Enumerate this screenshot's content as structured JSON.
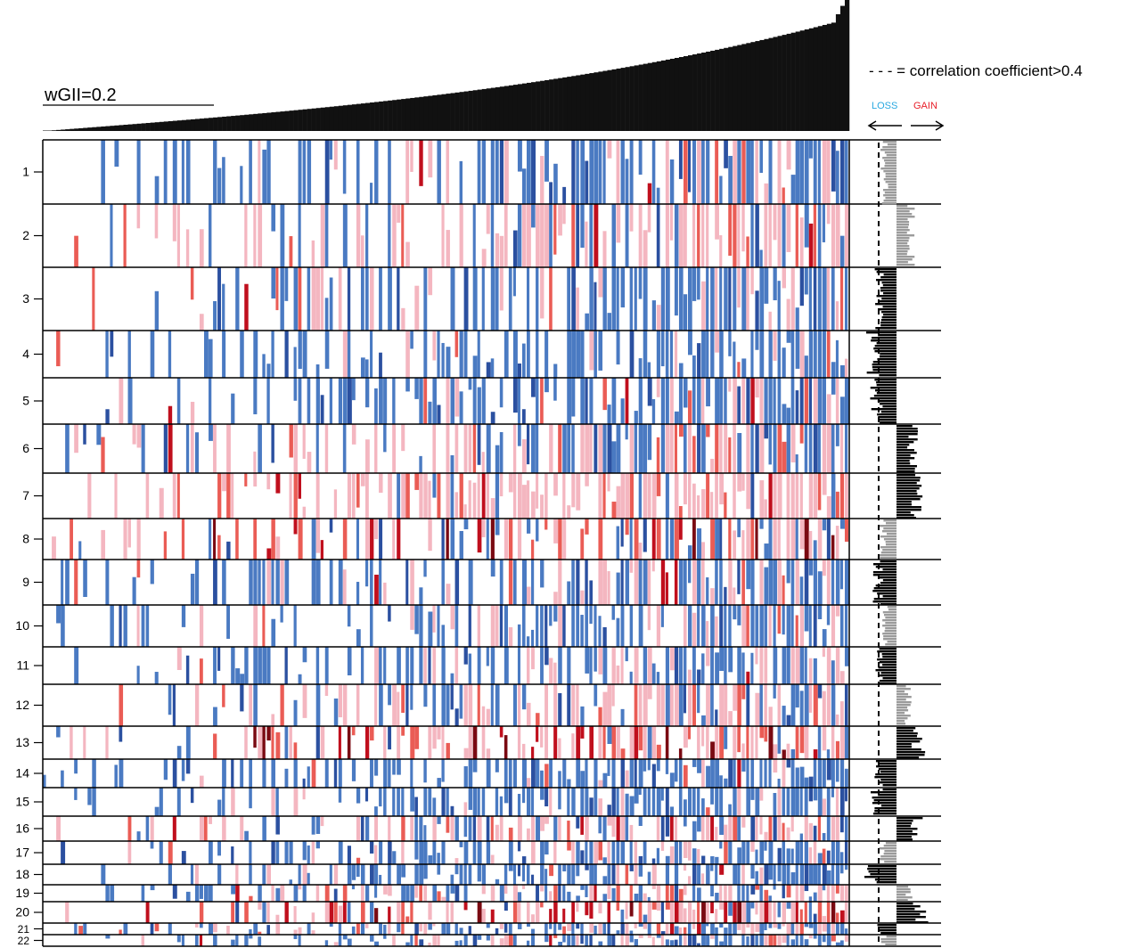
{
  "chart_data": [
    {
      "type": "bar",
      "title": "",
      "description_marks": "sorted per-sample wGII values (ascending, left to right)",
      "threshold_label": "wGII=0.2",
      "threshold_value": 0.2,
      "ylim": [
        0,
        1
      ],
      "n_samples": 180,
      "values_start": 0.0,
      "values_end": 0.93,
      "values_threshold_index": 50
    },
    {
      "type": "heatmap",
      "rows": [
        "1",
        "2",
        "3",
        "4",
        "5",
        "6",
        "7",
        "8",
        "9",
        "10",
        "11",
        "12",
        "13",
        "14",
        "15",
        "16",
        "17",
        "18",
        "19",
        "20",
        "21",
        "22"
      ],
      "gain_prob": [
        0.12,
        0.38,
        0.14,
        0.05,
        0.1,
        0.2,
        0.5,
        0.62,
        0.16,
        0.1,
        0.14,
        0.25,
        0.6,
        0.05,
        0.06,
        0.3,
        0.18,
        0.1,
        0.3,
        0.7,
        0.3,
        0.25
      ],
      "loss_prob": [
        0.38,
        0.12,
        0.36,
        0.6,
        0.42,
        0.24,
        0.05,
        0.3,
        0.36,
        0.34,
        0.32,
        0.18,
        0.06,
        0.48,
        0.5,
        0.28,
        0.5,
        0.72,
        0.32,
        0.08,
        0.45,
        0.5
      ],
      "colors": {
        "loss": "#4a7ac2",
        "loss_deep": "#2b50a0",
        "gain_light": "#f4b6c0",
        "gain_mid": "#ea5c55",
        "gain_deep": "#c00f1d",
        "gain_darkest": "#7a0a12"
      }
    },
    {
      "type": "bar",
      "orientation": "horizontal",
      "legend_text": "- - - = correlation coefficient>0.4",
      "loss_label": "LOSS",
      "gain_label": "GAIN",
      "loss_color": "#29a8e0",
      "gain_color": "#e8202a",
      "bar_colors": {
        "significant": "#000000",
        "non_significant": "#9b9b9b"
      },
      "threshold_x": -0.4,
      "row_values": [
        -0.3,
        0.35,
        -0.45,
        -0.6,
        -0.5,
        0.4,
        0.5,
        -0.35,
        -0.45,
        -0.3,
        -0.4,
        0.3,
        0.55,
        -0.45,
        -0.5,
        0.5,
        -0.35,
        -0.6,
        0.3,
        0.6,
        -0.4,
        -0.3
      ]
    }
  ]
}
